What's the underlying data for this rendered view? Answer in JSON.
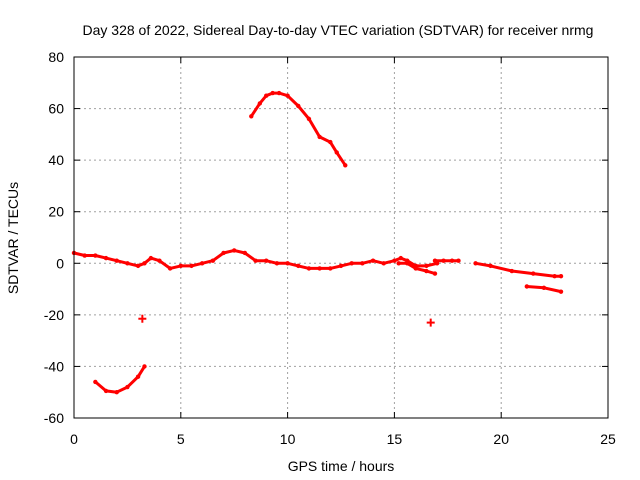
{
  "chart_data": {
    "type": "scatter",
    "title": "Day 328 of 2022, Sidereal Day-to-day VTEC variation (SDTVAR) for receiver nrmg",
    "xlabel": "GPS time / hours",
    "ylabel": "SDTVAR / TECUs",
    "xlim": [
      0,
      25
    ],
    "ylim": [
      -60,
      80
    ],
    "xticks": [
      0,
      5,
      10,
      15,
      20,
      25
    ],
    "yticks": [
      -60,
      -40,
      -20,
      0,
      20,
      40,
      60,
      80
    ],
    "grid": true,
    "legend": "none",
    "color": "#ff0000",
    "series": [
      {
        "name": "main-arc",
        "x": [
          0,
          0.5,
          1,
          1.5,
          2,
          2.5,
          3,
          3.3,
          3.6,
          4,
          4.5,
          5,
          5.5,
          6,
          6.5,
          7,
          7.5,
          8,
          8.5,
          9,
          9.5,
          10,
          10.5,
          11,
          11.5,
          12,
          12.5,
          13,
          13.5,
          14,
          14.5,
          15,
          15.3,
          15.6,
          16,
          16.5,
          17
        ],
        "y": [
          4,
          3,
          3,
          2,
          1,
          0,
          -1,
          0,
          2,
          1,
          -2,
          -1,
          -1,
          0,
          1,
          4,
          5,
          4,
          1,
          1,
          0,
          0,
          -1,
          -2,
          -2,
          -2,
          -1,
          0,
          0,
          1,
          0,
          1,
          2,
          1,
          -1,
          -1,
          0
        ]
      },
      {
        "name": "arc-upper-branch",
        "x": [
          15.2,
          15.6,
          16,
          16.5,
          16.9
        ],
        "y": [
          0,
          0,
          -2,
          -3,
          -4
        ]
      },
      {
        "name": "arc-17-18",
        "x": [
          16.9,
          17.3,
          17.7,
          18
        ],
        "y": [
          1,
          1,
          1,
          1
        ]
      },
      {
        "name": "arc-19-23",
        "x": [
          18.8,
          19.5,
          20.5,
          21.5,
          22.5,
          22.8
        ],
        "y": [
          0,
          -1,
          -3,
          -4,
          -5,
          -5
        ]
      },
      {
        "name": "arc-21-23-low",
        "x": [
          21.2,
          22,
          22.8
        ],
        "y": [
          -9,
          -9.5,
          -11
        ]
      },
      {
        "name": "arc-high",
        "x": [
          8.3,
          8.7,
          9,
          9.3,
          9.6,
          10,
          10.5,
          11,
          11.5,
          12,
          12.3,
          12.7
        ],
        "y": [
          57,
          62,
          65,
          66,
          66,
          65,
          61,
          56,
          49,
          47,
          43,
          38
        ]
      },
      {
        "name": "arc-negative",
        "x": [
          1,
          1.5,
          2,
          2.5,
          3,
          3.3
        ],
        "y": [
          -46,
          -49.5,
          -50,
          -48,
          -44,
          -40
        ]
      }
    ],
    "points": [
      {
        "x": 3.2,
        "y": -21.5
      },
      {
        "x": 16.7,
        "y": -23
      }
    ]
  }
}
